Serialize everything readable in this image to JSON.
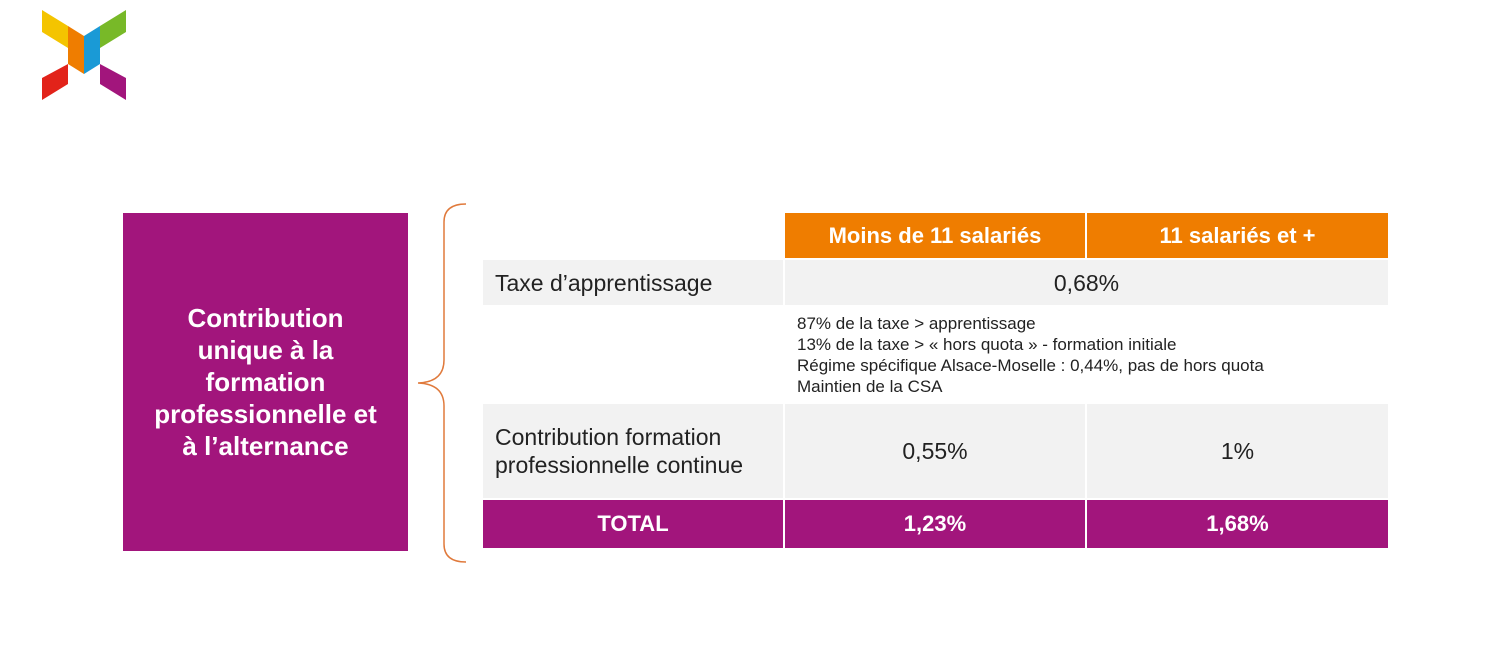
{
  "logo": {
    "icon": "pinwheel-logo-icon",
    "colors": [
      "#f4c400",
      "#78b928",
      "#ef7d00",
      "#1a9ad6",
      "#e2231a",
      "#a2157c"
    ]
  },
  "left_box": {
    "text": "Contribution\nunique à la\nformation\nprofessionnelle et\nà l’alternance"
  },
  "table": {
    "headers": [
      "",
      "Moins de 11 salariés",
      "11 salariés et +"
    ],
    "rows": [
      {
        "label": "Taxe d’apprentissage",
        "value": "0,68%"
      },
      {
        "label": "",
        "notes": [
          "87% de la taxe > apprentissage",
          "13% de la taxe > « hors quota » - formation initiale",
          "Régime spécifique Alsace-Moselle : 0,44%, pas de hors quota",
          "Maintien de la CSA"
        ]
      },
      {
        "label": "Contribution formation professionnelle continue",
        "values": [
          "0,55%",
          "1%"
        ]
      },
      {
        "label": "TOTAL",
        "values": [
          "1,23%",
          "1,68%"
        ]
      }
    ]
  },
  "colors": {
    "purple": "#a2157c",
    "orange": "#ef7d00",
    "grey_row": "#f2f2f2",
    "brace": "#e07a3c"
  }
}
